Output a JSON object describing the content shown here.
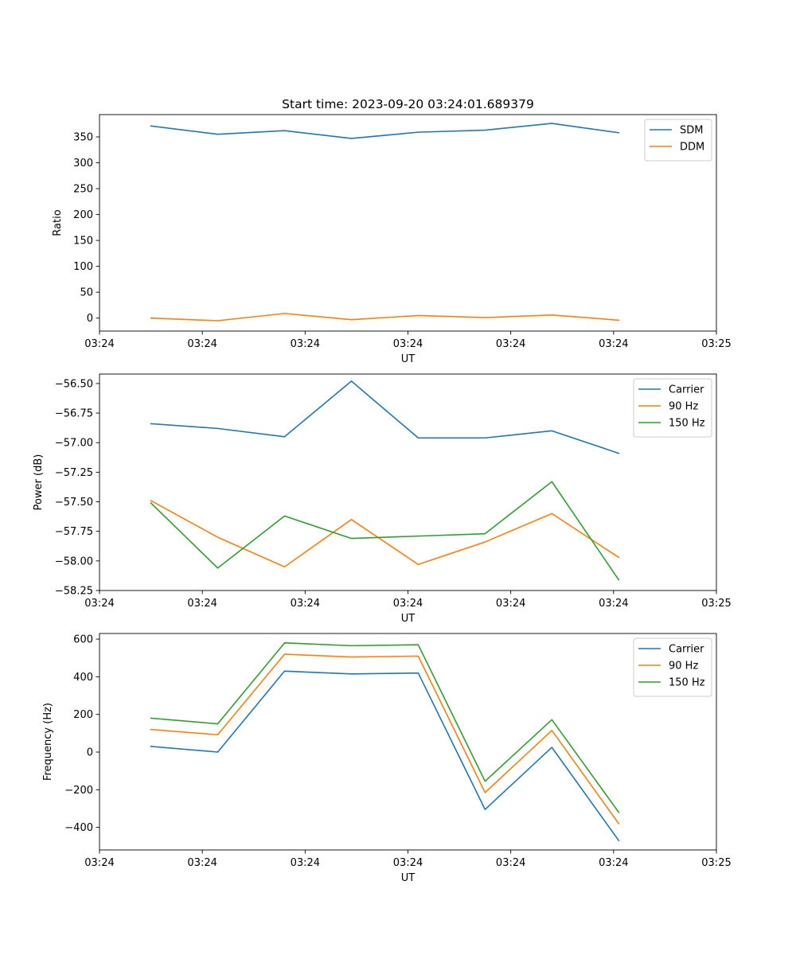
{
  "chart_data": [
    {
      "type": "line",
      "title": "Start time: 2023-09-20 03:24:01.689379",
      "xlabel": "UT",
      "ylabel": "Ratio",
      "xlim": [
        0,
        6.0
      ],
      "ylim": [
        -25,
        393
      ],
      "x_ticks": [
        0,
        1,
        2,
        3,
        4,
        5,
        6
      ],
      "x_tick_labels": [
        "03:24",
        "03:24",
        "03:24",
        "03:24",
        "03:24",
        "03:24",
        "03:25"
      ],
      "y_ticks": [
        0,
        50,
        100,
        150,
        200,
        250,
        300,
        350
      ],
      "y_tick_labels": [
        "0",
        "50",
        "100",
        "150",
        "200",
        "250",
        "300",
        "350"
      ],
      "legend_position": "top-right",
      "x": [
        0.5,
        1.15,
        1.8,
        2.45,
        3.1,
        3.75,
        4.4,
        5.05
      ],
      "series": [
        {
          "name": "SDM",
          "color": "#1f77b4",
          "values": [
            371,
            355,
            362,
            347,
            359,
            363,
            376,
            358
          ]
        },
        {
          "name": "DDM",
          "color": "#ff7f0e",
          "values": [
            0,
            -5,
            9,
            -3,
            5,
            1,
            6,
            -4
          ]
        }
      ]
    },
    {
      "type": "line",
      "title": "",
      "xlabel": "UT",
      "ylabel": "Power (dB)",
      "xlim": [
        0,
        6.0
      ],
      "ylim": [
        -58.25,
        -56.42
      ],
      "x_ticks": [
        0,
        1,
        2,
        3,
        4,
        5,
        6
      ],
      "x_tick_labels": [
        "03:24",
        "03:24",
        "03:24",
        "03:24",
        "03:24",
        "03:24",
        "03:25"
      ],
      "y_ticks": [
        -58.25,
        -58.0,
        -57.75,
        -57.5,
        -57.25,
        -57.0,
        -56.75,
        -56.5
      ],
      "y_tick_labels": [
        "−58.25",
        "−58.00",
        "−57.75",
        "−57.50",
        "−57.25",
        "−57.00",
        "−56.75",
        "−56.50"
      ],
      "legend_position": "top-right",
      "x": [
        0.5,
        1.15,
        1.8,
        2.45,
        3.1,
        3.75,
        4.4,
        5.05
      ],
      "series": [
        {
          "name": "Carrier",
          "color": "#1f77b4",
          "values": [
            -56.84,
            -56.88,
            -56.95,
            -56.48,
            -56.96,
            -56.96,
            -56.9,
            -57.09
          ]
        },
        {
          "name": "90 Hz",
          "color": "#ff7f0e",
          "values": [
            -57.49,
            -57.8,
            -58.05,
            -57.65,
            -58.03,
            -57.84,
            -57.6,
            -57.97
          ]
        },
        {
          "name": "150 Hz",
          "color": "#2ca02c",
          "values": [
            -57.51,
            -58.06,
            -57.62,
            -57.81,
            -57.79,
            -57.77,
            -57.33,
            -58.16
          ]
        }
      ]
    },
    {
      "type": "line",
      "title": "",
      "xlabel": "UT",
      "ylabel": "Frequency (Hz)",
      "xlim": [
        0,
        6.0
      ],
      "ylim": [
        -520,
        630
      ],
      "x_ticks": [
        0,
        1,
        2,
        3,
        4,
        5,
        6
      ],
      "x_tick_labels": [
        "03:24",
        "03:24",
        "03:24",
        "03:24",
        "03:24",
        "03:24",
        "03:25"
      ],
      "y_ticks": [
        -400,
        -200,
        0,
        200,
        400,
        600
      ],
      "y_tick_labels": [
        "−400",
        "−200",
        "0",
        "200",
        "400",
        "600"
      ],
      "legend_position": "top-right",
      "x": [
        0.5,
        1.15,
        1.8,
        2.45,
        3.1,
        3.75,
        4.4,
        5.05
      ],
      "series": [
        {
          "name": "Carrier",
          "color": "#1f77b4",
          "values": [
            30,
            0,
            430,
            415,
            420,
            -305,
            25,
            -470
          ]
        },
        {
          "name": "90 Hz",
          "color": "#ff7f0e",
          "values": [
            120,
            92,
            520,
            505,
            510,
            -215,
            115,
            -380
          ]
        },
        {
          "name": "150 Hz",
          "color": "#2ca02c",
          "values": [
            180,
            150,
            580,
            565,
            570,
            -155,
            172,
            -320
          ]
        }
      ]
    }
  ]
}
